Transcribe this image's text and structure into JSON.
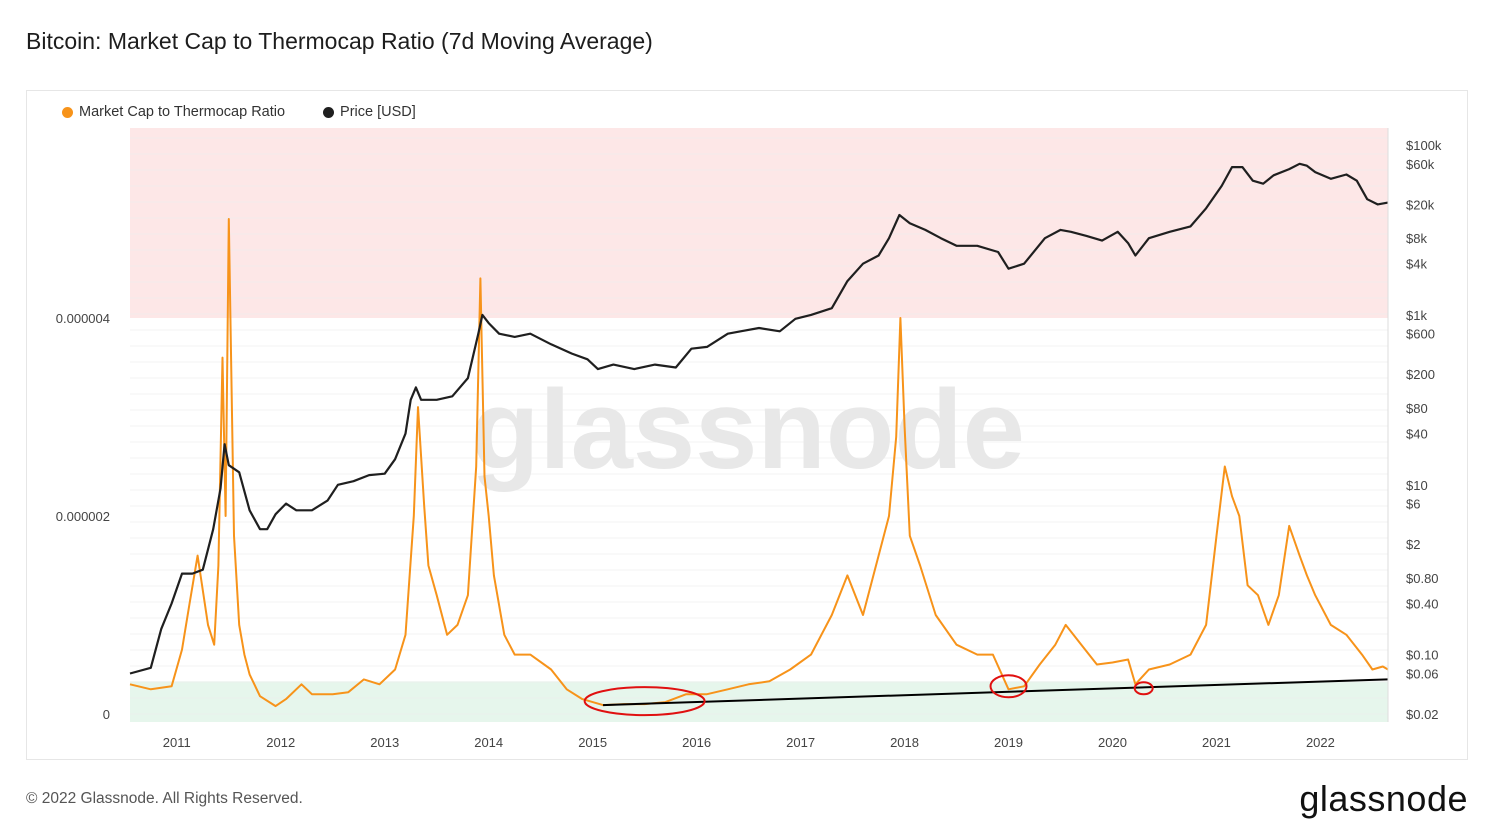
{
  "title": "Bitcoin: Market Cap to Thermocap Ratio (7d Moving Average)",
  "legend": [
    {
      "name": "Market Cap to Thermocap Ratio",
      "color": "#f7931a"
    },
    {
      "name": "Price [USD]",
      "color": "#1f1f1f"
    }
  ],
  "watermark": "glassnode",
  "footer": "© 2022 Glassnode. All Rights Reserved.",
  "brand": "glassnode",
  "chart_data": {
    "type": "line",
    "x_ticks": [
      "2011",
      "2012",
      "2013",
      "2014",
      "2015",
      "2016",
      "2017",
      "2018",
      "2019",
      "2020",
      "2021",
      "2022"
    ],
    "y_left_ticks": [
      "0",
      "0.000002",
      "0.000004"
    ],
    "y_left_values": [
      0,
      2e-06,
      4e-06
    ],
    "y_right_ticks": [
      "$100k",
      "$60k",
      "$20k",
      "$8k",
      "$4k",
      "$1k",
      "$600",
      "$200",
      "$80",
      "$40",
      "$10",
      "$6",
      "$2",
      "$0.80",
      "$0.40",
      "$0.10",
      "$0.06",
      "$0.02"
    ],
    "y_right_values": [
      100000,
      60000,
      20000,
      8000,
      4000,
      1000,
      600,
      200,
      80,
      40,
      10,
      6,
      2,
      0.8,
      0.4,
      0.1,
      0.06,
      0.02
    ],
    "y_right_scale": "log",
    "bands": [
      {
        "name": "overvalued",
        "from": 4e-06,
        "to": 6e-06,
        "color": "#fde7e7"
      },
      {
        "name": "undervalued",
        "from": 0,
        "to": 3.3e-07,
        "color": "#e6f6ec"
      }
    ],
    "series": [
      {
        "name": "Market Cap to Thermocap Ratio",
        "color": "#f7931a",
        "axis": "left",
        "x": [
          2010.55,
          2010.75,
          2010.95,
          2011.05,
          2011.12,
          2011.2,
          2011.3,
          2011.36,
          2011.4,
          2011.44,
          2011.47,
          2011.5,
          2011.55,
          2011.6,
          2011.65,
          2011.7,
          2011.8,
          2011.95,
          2012.05,
          2012.2,
          2012.3,
          2012.5,
          2012.65,
          2012.8,
          2012.95,
          2013.1,
          2013.2,
          2013.28,
          2013.32,
          2013.38,
          2013.42,
          2013.5,
          2013.6,
          2013.7,
          2013.8,
          2013.88,
          2013.92,
          2013.96,
          2014.0,
          2014.05,
          2014.15,
          2014.25,
          2014.4,
          2014.6,
          2014.75,
          2014.9,
          2015.1,
          2015.3,
          2015.5,
          2015.7,
          2015.9,
          2016.1,
          2016.3,
          2016.5,
          2016.7,
          2016.9,
          2017.1,
          2017.3,
          2017.45,
          2017.6,
          2017.75,
          2017.85,
          2017.92,
          2017.96,
          2018.0,
          2018.05,
          2018.15,
          2018.3,
          2018.5,
          2018.7,
          2018.85,
          2019.0,
          2019.15,
          2019.3,
          2019.45,
          2019.55,
          2019.7,
          2019.85,
          2020.0,
          2020.15,
          2020.22,
          2020.35,
          2020.55,
          2020.75,
          2020.9,
          2021.0,
          2021.08,
          2021.15,
          2021.22,
          2021.3,
          2021.4,
          2021.5,
          2021.6,
          2021.7,
          2021.8,
          2021.87,
          2021.95,
          2022.1,
          2022.25,
          2022.4,
          2022.5,
          2022.6,
          2022.65
        ],
        "y": [
          3e-07,
          2.5e-07,
          2.8e-07,
          6.5e-07,
          1.1e-06,
          1.6e-06,
          9e-07,
          7e-07,
          1.5e-06,
          3.6e-06,
          2e-06,
          5e-06,
          1.8e-06,
          9e-07,
          6e-07,
          4e-07,
          1.8e-07,
          8e-08,
          1.5e-07,
          3e-07,
          2e-07,
          2e-07,
          2.2e-07,
          3.5e-07,
          3e-07,
          4.5e-07,
          8e-07,
          2e-06,
          3.1e-06,
          2.1e-06,
          1.5e-06,
          1.2e-06,
          8e-07,
          9e-07,
          1.2e-06,
          2.5e-06,
          4.4e-06,
          2.4e-06,
          2e-06,
          1.4e-06,
          8e-07,
          6e-07,
          6e-07,
          4.5e-07,
          2.5e-07,
          1.5e-07,
          9e-08,
          1e-07,
          1e-07,
          1.2e-07,
          2e-07,
          2e-07,
          2.5e-07,
          3e-07,
          3.3e-07,
          4.5e-07,
          6e-07,
          1e-06,
          1.4e-06,
          1e-06,
          1.6e-06,
          2e-06,
          2.8e-06,
          4e-06,
          2.9e-06,
          1.8e-06,
          1.5e-06,
          1e-06,
          7e-07,
          6e-07,
          6e-07,
          2.5e-07,
          2.8e-07,
          5e-07,
          7e-07,
          9e-07,
          7e-07,
          5e-07,
          5.2e-07,
          5.5e-07,
          3e-07,
          4.5e-07,
          5e-07,
          6e-07,
          9e-07,
          1.8e-06,
          2.5e-06,
          2.2e-06,
          2e-06,
          1.3e-06,
          1.2e-06,
          9e-07,
          1.2e-06,
          1.9e-06,
          1.6e-06,
          1.4e-06,
          1.2e-06,
          9e-07,
          8e-07,
          6e-07,
          4.5e-07,
          4.8e-07,
          4.5e-07
        ]
      },
      {
        "name": "Price [USD]",
        "color": "#1f1f1f",
        "axis": "right",
        "x": [
          2010.55,
          2010.75,
          2010.85,
          2010.95,
          2011.05,
          2011.15,
          2011.25,
          2011.35,
          2011.42,
          2011.46,
          2011.5,
          2011.6,
          2011.7,
          2011.8,
          2011.87,
          2011.95,
          2012.05,
          2012.15,
          2012.3,
          2012.45,
          2012.55,
          2012.7,
          2012.85,
          2013.0,
          2013.1,
          2013.2,
          2013.25,
          2013.3,
          2013.35,
          2013.5,
          2013.65,
          2013.8,
          2013.9,
          2013.94,
          2014.0,
          2014.1,
          2014.25,
          2014.4,
          2014.6,
          2014.8,
          2014.95,
          2015.05,
          2015.2,
          2015.4,
          2015.6,
          2015.8,
          2015.95,
          2016.1,
          2016.3,
          2016.45,
          2016.6,
          2016.8,
          2016.95,
          2017.1,
          2017.3,
          2017.45,
          2017.6,
          2017.75,
          2017.85,
          2017.95,
          2018.05,
          2018.2,
          2018.35,
          2018.5,
          2018.7,
          2018.9,
          2019.0,
          2019.15,
          2019.35,
          2019.5,
          2019.6,
          2019.75,
          2019.9,
          2020.05,
          2020.15,
          2020.22,
          2020.35,
          2020.55,
          2020.75,
          2020.9,
          2021.05,
          2021.15,
          2021.25,
          2021.35,
          2021.45,
          2021.55,
          2021.7,
          2021.8,
          2021.87,
          2021.95,
          2022.1,
          2022.25,
          2022.35,
          2022.45,
          2022.55,
          2022.65
        ],
        "y": [
          0.06,
          0.07,
          0.2,
          0.4,
          0.9,
          0.9,
          1.0,
          3.0,
          9.0,
          30,
          17,
          14,
          5.0,
          3.0,
          3.0,
          4.5,
          6.0,
          5.0,
          5.0,
          6.5,
          10,
          11,
          13,
          13.5,
          20,
          40,
          100,
          140,
          100,
          100,
          110,
          180,
          600,
          1000,
          800,
          600,
          550,
          600,
          450,
          350,
          300,
          230,
          260,
          230,
          260,
          240,
          400,
          420,
          600,
          650,
          700,
          640,
          900,
          1000,
          1200,
          2500,
          4000,
          5000,
          8000,
          15000,
          12000,
          10000,
          8000,
          6500,
          6500,
          5500,
          3500,
          4000,
          8000,
          10000,
          9500,
          8500,
          7500,
          9500,
          7000,
          5000,
          8000,
          9500,
          11000,
          18000,
          33000,
          55000,
          55000,
          38000,
          35000,
          44000,
          52000,
          60000,
          57000,
          48000,
          40000,
          45000,
          38000,
          23000,
          20000,
          21000
        ]
      }
    ],
    "annotations": [
      {
        "type": "trendline",
        "color": "#000000",
        "from": [
          2015.1,
          9e-08
        ],
        "to": [
          2022.65,
          3.5e-07
        ]
      },
      {
        "type": "ellipse",
        "color": "#e01010",
        "center": [
          2015.5,
          1.3e-07
        ]
      },
      {
        "type": "ellipse",
        "color": "#e01010",
        "center": [
          2019.0,
          2.8e-07
        ]
      },
      {
        "type": "ellipse",
        "color": "#e01010",
        "center": [
          2020.3,
          2.6e-07
        ]
      }
    ]
  }
}
